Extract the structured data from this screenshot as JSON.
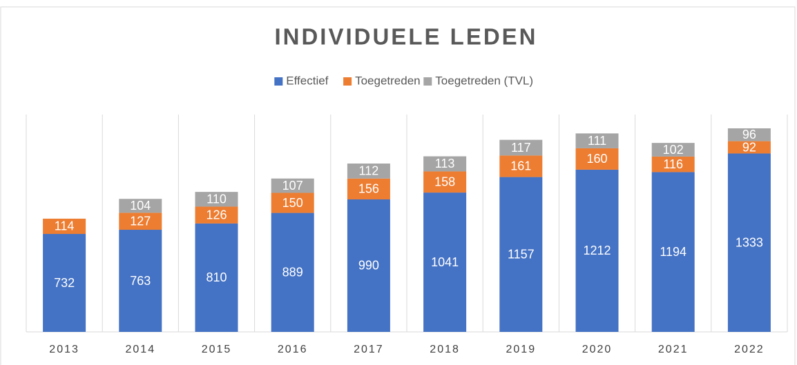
{
  "chart_data": {
    "type": "stacked_bar",
    "title": "INDIVIDUELE LEDEN",
    "categories": [
      "2013",
      "2014",
      "2015",
      "2016",
      "2017",
      "2018",
      "2019",
      "2020",
      "2021",
      "2022"
    ],
    "series": [
      {
        "name": "Effectief",
        "color": "#4472c4",
        "values": [
          732,
          763,
          810,
          889,
          990,
          1041,
          1157,
          1212,
          1194,
          1333
        ]
      },
      {
        "name": "Toegetreden",
        "color": "#ed7d31",
        "values": [
          114,
          127,
          126,
          150,
          156,
          158,
          161,
          160,
          116,
          92
        ]
      },
      {
        "name": "Toegetreden (TVL)",
        "color": "#a5a5a5",
        "values": [
          0,
          104,
          110,
          107,
          112,
          113,
          117,
          111,
          102,
          96
        ]
      }
    ],
    "legend": "top",
    "grid": "vertical"
  }
}
